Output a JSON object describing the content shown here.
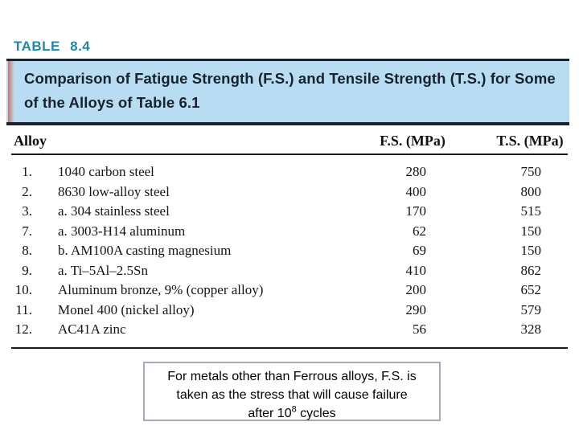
{
  "title": "TABLE 8.4",
  "colors": {
    "title_teal": "#1e87b2",
    "header_box_bg": "#b8ddf2",
    "rule_dark": "#18232e",
    "caption_border": "#a6aab6"
  },
  "header_box": {
    "line1": "Comparison of Fatigue Strength (F.S.) and Tensile Strength (T.S.) for Some",
    "line2": "of the Alloys of Table 6.1"
  },
  "table": {
    "columns": [
      "Alloy",
      "F.S. (MPa)",
      "T.S. (MPa)"
    ],
    "rows": [
      {
        "num": "1.",
        "alloy": "1040 carbon steel",
        "fs": "280",
        "ts": "750"
      },
      {
        "num": "2.",
        "alloy": "8630 low-alloy steel",
        "fs": "400",
        "ts": "800"
      },
      {
        "num": "3.",
        "alloy": "a. 304 stainless steel",
        "fs": "170",
        "ts": "515"
      },
      {
        "num": "7.",
        "alloy": "a. 3003-H14 aluminum",
        "fs": "62",
        "ts": "150"
      },
      {
        "num": "8.",
        "alloy": "b. AM100A casting magnesium",
        "fs": "69",
        "ts": "150"
      },
      {
        "num": "9.",
        "alloy": "a. Ti–5Al–2.5Sn",
        "fs": "410",
        "ts": "862"
      },
      {
        "num": "10.",
        "alloy": "Aluminum bronze, 9% (copper alloy)",
        "fs": "200",
        "ts": "652"
      },
      {
        "num": "11.",
        "alloy": "Monel 400 (nickel alloy)",
        "fs": "290",
        "ts": "579"
      },
      {
        "num": "12.",
        "alloy": "AC41A zinc",
        "fs": "56",
        "ts": "328"
      }
    ]
  },
  "caption": {
    "line1": "For metals other than Ferrous alloys, F.S. is",
    "line2": "taken as the stress that will cause failure",
    "line3_pre": "after 10",
    "line3_sup": "8",
    "line3_post": " cycles"
  }
}
